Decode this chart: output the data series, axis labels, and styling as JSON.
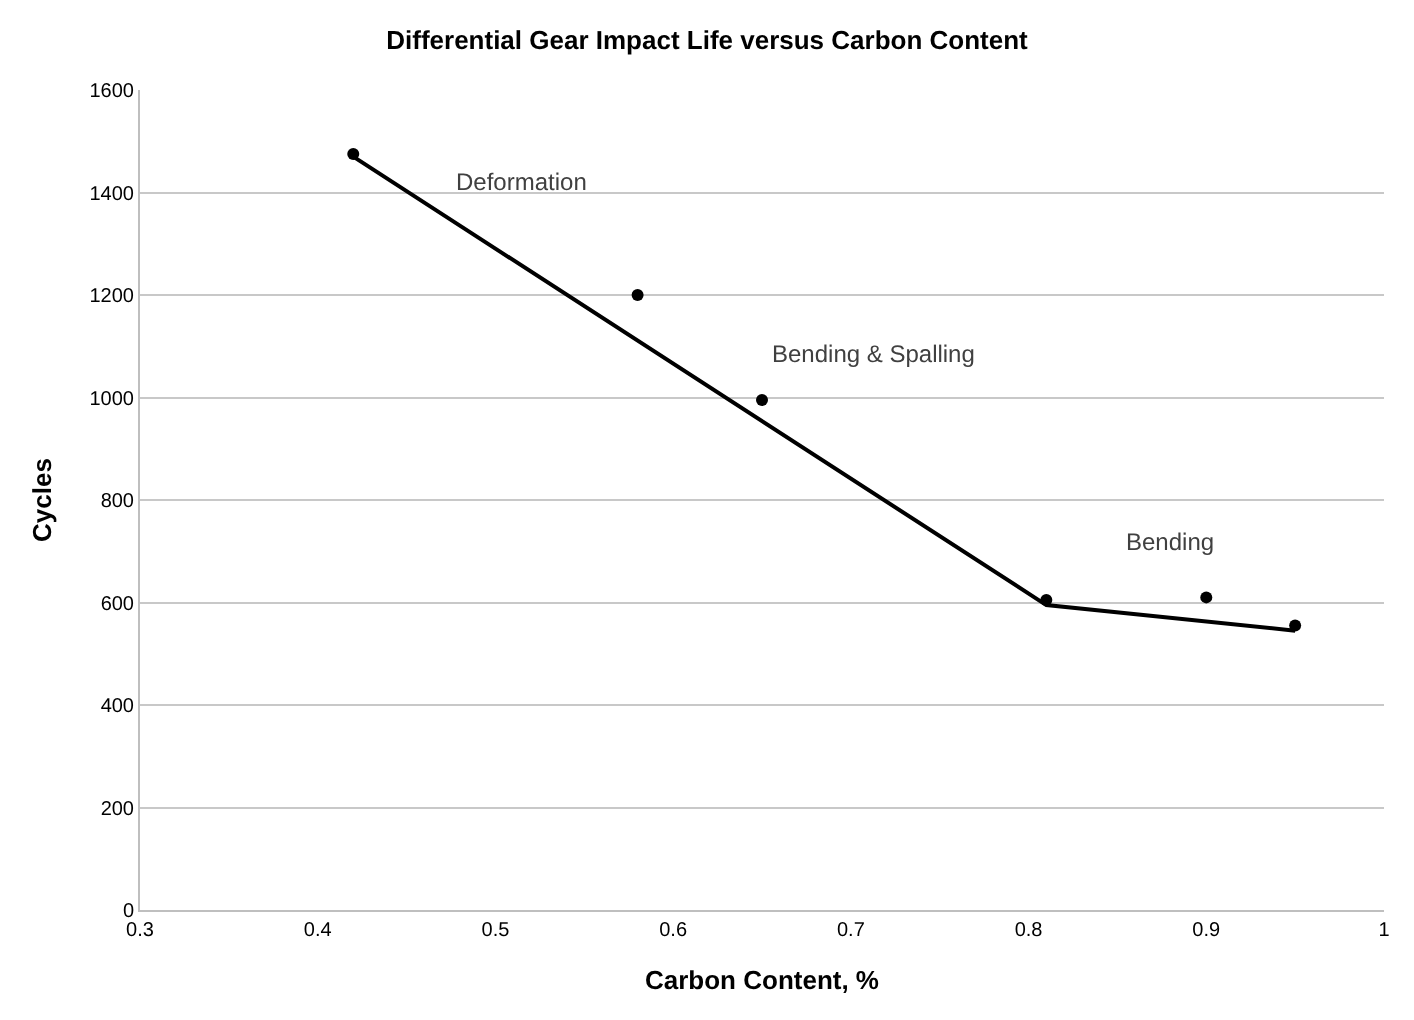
{
  "chart_data": {
    "type": "scatter",
    "title": "Differential Gear Impact Life versus Carbon Content",
    "xlabel": "Carbon Content, %",
    "ylabel": "Cycles",
    "series": [
      {
        "color": "#000000",
        "x": [
          0.42,
          0.58,
          0.65,
          0.81,
          0.9,
          0.95
        ],
        "values": [
          1475,
          1200,
          995,
          605,
          610,
          555
        ],
        "marker": "circle"
      },
      {
        "type": "line",
        "color": "#000000",
        "x": [
          0.42,
          0.81,
          0.95
        ],
        "values": [
          1470,
          595,
          545
        ],
        "marker": "none",
        "line_style": "solid"
      }
    ],
    "annotations": [
      "Deformation",
      "Bending & Spalling",
      "Bending"
    ],
    "xlim": [
      0.3,
      1
    ],
    "xticks": [
      0.3,
      0.4,
      0.5,
      0.6,
      0.7,
      0.8,
      0.9,
      1
    ],
    "ylim": [
      0,
      1600
    ],
    "yticks": [
      0,
      200,
      400,
      600,
      800,
      1000,
      1200,
      1400,
      1600
    ],
    "grid": "y"
  }
}
